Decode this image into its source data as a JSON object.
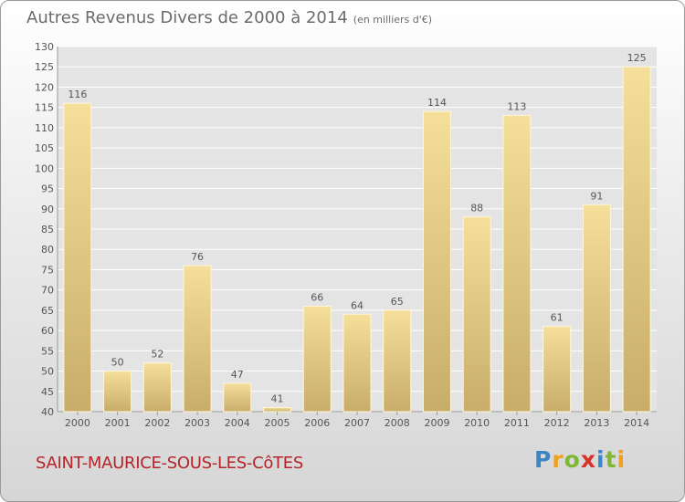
{
  "chart_data": {
    "type": "bar",
    "title": "Autres Revenus Divers de 2000 à 2014",
    "subtitle": "(en milliers d'€)",
    "categories": [
      "2000",
      "2001",
      "2002",
      "2003",
      "2004",
      "2005",
      "2006",
      "2007",
      "2008",
      "2009",
      "2010",
      "2011",
      "2012",
      "2013",
      "2014"
    ],
    "values": [
      116,
      50,
      52,
      76,
      47,
      41,
      66,
      64,
      65,
      114,
      88,
      113,
      61,
      91,
      125
    ],
    "ylim": [
      40,
      130
    ],
    "yticks": [
      40,
      45,
      50,
      55,
      60,
      65,
      70,
      75,
      80,
      85,
      90,
      95,
      100,
      105,
      110,
      115,
      120,
      125,
      130
    ],
    "grid": true,
    "bar_color": "#e6cc80"
  },
  "commune": "SAINT-MAURICE-SOUS-LES-CôTES",
  "logo": {
    "letters": [
      "P",
      "r",
      "o",
      "x",
      "i",
      "t",
      "i"
    ],
    "colors": [
      "#3a86c8",
      "#f0a020",
      "#7fb832",
      "#d8322a",
      "#3a86c8",
      "#7fb832",
      "#f0a020"
    ]
  }
}
